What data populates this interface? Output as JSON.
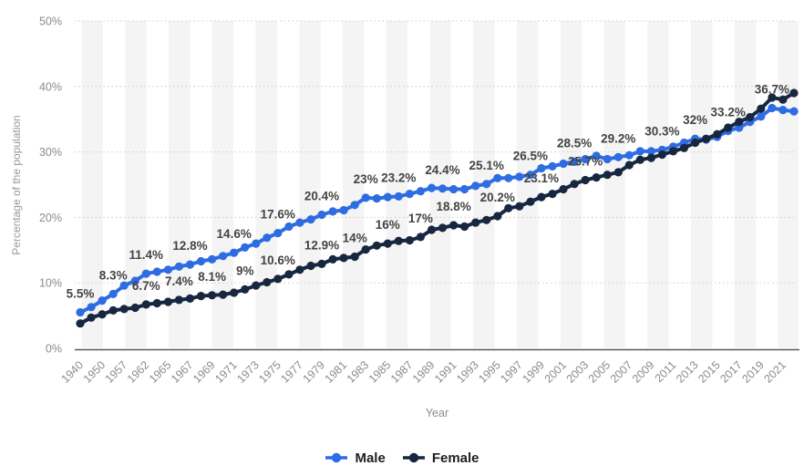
{
  "chart_data": {
    "type": "line",
    "title": "",
    "xlabel": "Year",
    "ylabel": "Percentage of the population",
    "ylim": [
      0,
      50
    ],
    "ytick_values": [
      0,
      10,
      20,
      30,
      40,
      50
    ],
    "ytick_labels": [
      "0%",
      "10%",
      "20%",
      "30%",
      "40%",
      "50%"
    ],
    "grid": "horizontal-dotted",
    "legend_position": "bottom",
    "categories": [
      1940,
      1947,
      1950,
      1952,
      1957,
      1959,
      1962,
      1964,
      1965,
      1966,
      1967,
      1968,
      1969,
      1970,
      1971,
      1972,
      1973,
      1974,
      1975,
      1976,
      1977,
      1978,
      1979,
      1980,
      1981,
      1982,
      1983,
      1984,
      1985,
      1986,
      1987,
      1988,
      1989,
      1990,
      1991,
      1992,
      1993,
      1994,
      1995,
      1996,
      1997,
      1998,
      1999,
      2000,
      2001,
      2002,
      2003,
      2004,
      2005,
      2006,
      2007,
      2008,
      2009,
      2010,
      2011,
      2012,
      2013,
      2014,
      2015,
      2016,
      2017,
      2018,
      2019,
      2020,
      2021,
      2022
    ],
    "x_tick_years": [
      1940,
      1950,
      1957,
      1962,
      1965,
      1967,
      1969,
      1971,
      1973,
      1975,
      1977,
      1979,
      1981,
      1983,
      1985,
      1987,
      1989,
      1991,
      1993,
      1995,
      1997,
      1999,
      2001,
      2003,
      2005,
      2007,
      2009,
      2011,
      2013,
      2015,
      2017,
      2019,
      2021
    ],
    "series": [
      {
        "name": "Male",
        "color": "#2e6ce2",
        "values": [
          5.5,
          6.3,
          7.3,
          8.3,
          9.6,
          10.3,
          11.4,
          11.7,
          12.0,
          12.5,
          12.8,
          13.3,
          13.6,
          14.1,
          14.6,
          15.4,
          16.0,
          16.9,
          17.6,
          18.6,
          19.2,
          19.7,
          20.4,
          20.9,
          21.1,
          21.9,
          23.0,
          22.9,
          23.1,
          23.2,
          23.6,
          24.0,
          24.5,
          24.4,
          24.3,
          24.3,
          24.8,
          25.1,
          26.0,
          26.0,
          26.2,
          26.5,
          27.5,
          27.8,
          28.2,
          28.5,
          28.9,
          29.4,
          28.9,
          29.2,
          29.5,
          30.1,
          30.1,
          30.3,
          30.8,
          31.4,
          32.0,
          31.9,
          32.3,
          33.2,
          33.7,
          34.6,
          35.4,
          36.7,
          36.4,
          36.2
        ]
      },
      {
        "name": "Female",
        "color": "#172740",
        "values": [
          3.8,
          4.7,
          5.2,
          5.8,
          6.0,
          6.2,
          6.7,
          6.9,
          7.1,
          7.4,
          7.6,
          8.0,
          8.1,
          8.2,
          8.5,
          9.0,
          9.6,
          10.1,
          10.6,
          11.3,
          12.0,
          12.6,
          12.9,
          13.6,
          13.8,
          14.0,
          15.1,
          15.7,
          16.0,
          16.4,
          16.5,
          17.0,
          18.1,
          18.4,
          18.8,
          18.6,
          19.2,
          19.6,
          20.2,
          21.4,
          21.7,
          22.4,
          23.1,
          23.6,
          24.3,
          25.1,
          25.7,
          26.1,
          26.5,
          26.9,
          28.0,
          28.8,
          29.1,
          29.6,
          30.1,
          30.6,
          31.4,
          32.0,
          32.7,
          33.7,
          34.6,
          35.3,
          36.6,
          38.3,
          38.0,
          39.0
        ]
      }
    ],
    "point_labels": [
      {
        "series": "Male",
        "year": 1940,
        "text": "5.5%"
      },
      {
        "series": "Male",
        "year": 1952,
        "text": "8.3%"
      },
      {
        "series": "Male",
        "year": 1962,
        "text": "11.4%"
      },
      {
        "series": "Male",
        "year": 1967,
        "text": "12.8%"
      },
      {
        "series": "Male",
        "year": 1971,
        "text": "14.6%"
      },
      {
        "series": "Male",
        "year": 1975,
        "text": "17.6%"
      },
      {
        "series": "Male",
        "year": 1979,
        "text": "20.4%"
      },
      {
        "series": "Male",
        "year": 1983,
        "text": "23%"
      },
      {
        "series": "Male",
        "year": 1986,
        "text": "23.2%"
      },
      {
        "series": "Male",
        "year": 1990,
        "text": "24.4%"
      },
      {
        "series": "Male",
        "year": 1994,
        "text": "25.1%"
      },
      {
        "series": "Male",
        "year": 1998,
        "text": "26.5%"
      },
      {
        "series": "Male",
        "year": 2002,
        "text": "28.5%"
      },
      {
        "series": "Male",
        "year": 2006,
        "text": "29.2%"
      },
      {
        "series": "Male",
        "year": 2010,
        "text": "30.3%"
      },
      {
        "series": "Male",
        "year": 2013,
        "text": "32%"
      },
      {
        "series": "Male",
        "year": 2016,
        "text": "33.2%"
      },
      {
        "series": "Male",
        "year": 2020,
        "text": "36.7%"
      },
      {
        "series": "Female",
        "year": 1962,
        "text": "6.7%"
      },
      {
        "series": "Female",
        "year": 1966,
        "text": "7.4%"
      },
      {
        "series": "Female",
        "year": 1969,
        "text": "8.1%"
      },
      {
        "series": "Female",
        "year": 1972,
        "text": "9%"
      },
      {
        "series": "Female",
        "year": 1975,
        "text": "10.6%"
      },
      {
        "series": "Female",
        "year": 1979,
        "text": "12.9%"
      },
      {
        "series": "Female",
        "year": 1982,
        "text": "14%"
      },
      {
        "series": "Female",
        "year": 1985,
        "text": "16%"
      },
      {
        "series": "Female",
        "year": 1988,
        "text": "17%"
      },
      {
        "series": "Female",
        "year": 1991,
        "text": "18.8%"
      },
      {
        "series": "Female",
        "year": 1995,
        "text": "20.2%"
      },
      {
        "series": "Female",
        "year": 1999,
        "text": "23.1%"
      },
      {
        "series": "Female",
        "year": 2003,
        "text": "25.7%"
      }
    ],
    "colors": {
      "plot_band": "#f4f4f4",
      "gridline": "#cccccc",
      "axis_line": "#5a5a5a",
      "tick_label": "#8b8b8b",
      "axis_title": "#9a9a9a",
      "data_label": "#434343"
    }
  }
}
